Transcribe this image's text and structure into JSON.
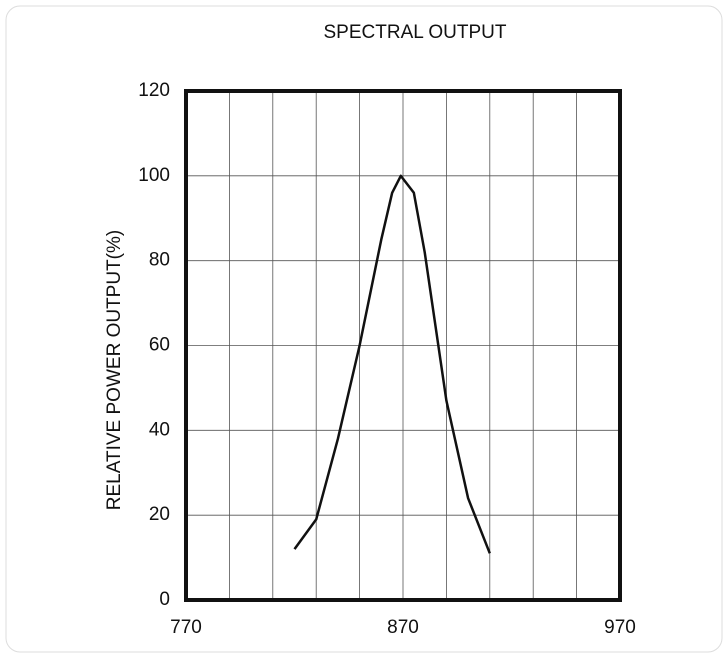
{
  "chart_data": {
    "type": "line",
    "title": "SPECTRAL OUTPUT",
    "y_label": "RELATIVE POWER OUTPUT(%)",
    "x": [
      820,
      830,
      840,
      850,
      860,
      865,
      869,
      875,
      880,
      890,
      900,
      910
    ],
    "series": [
      {
        "name": "spectral output",
        "color": "#111111",
        "values": [
          12,
          19,
          38,
          60,
          85,
          96,
          100,
          96,
          82,
          47,
          24,
          11
        ]
      }
    ],
    "xlim": [
      770,
      970
    ],
    "xticks": [
      770,
      870,
      970
    ],
    "x_grid": [
      790,
      810,
      830,
      850,
      870,
      890,
      910,
      930,
      950
    ],
    "ylim": [
      0,
      120
    ],
    "yticks": [
      0,
      20,
      40,
      60,
      80,
      100,
      120
    ],
    "grid": true
  }
}
